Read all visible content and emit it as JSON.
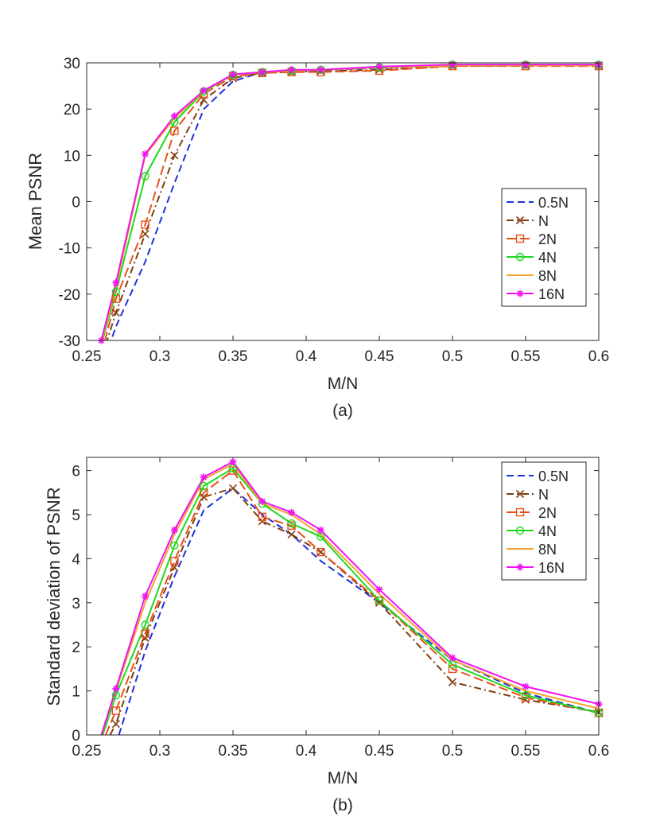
{
  "chart_data": [
    {
      "type": "line",
      "caption": "(a)",
      "xlabel": "M/N",
      "ylabel": "Mean PSNR",
      "xlim": [
        0.25,
        0.6
      ],
      "ylim": [
        -30,
        30
      ],
      "xticks": [
        "0.25",
        "0.3",
        "0.35",
        "0.4",
        "0.45",
        "0.5",
        "0.55",
        "0.6"
      ],
      "yticks": [
        "-30",
        "-20",
        "-10",
        "0",
        "10",
        "20",
        "30"
      ],
      "legend_position": "lower-right",
      "series": [
        {
          "name": "0.5N",
          "color": "#1f2fe0",
          "dash": "dashed",
          "marker": "none",
          "x": [
            0.26,
            0.27,
            0.29,
            0.31,
            0.33,
            0.35,
            0.37,
            0.39,
            0.41,
            0.45,
            0.5,
            0.55,
            0.6
          ],
          "y": [
            -36,
            -27,
            -13,
            4,
            20,
            26,
            28,
            28.2,
            28.4,
            28.9,
            29.4,
            29.5,
            29.5
          ]
        },
        {
          "name": "N",
          "color": "#7f3f10",
          "dash": "dashdot",
          "marker": "x",
          "x": [
            0.26,
            0.27,
            0.29,
            0.31,
            0.33,
            0.35,
            0.37,
            0.39,
            0.41,
            0.45,
            0.5,
            0.55,
            0.6
          ],
          "y": [
            -34,
            -24,
            -7,
            10,
            22,
            26.7,
            27.8,
            28,
            28.2,
            28.5,
            29.3,
            29.4,
            29.4
          ]
        },
        {
          "name": "2N",
          "color": "#e8501a",
          "dash": "longdash",
          "marker": "square",
          "x": [
            0.26,
            0.27,
            0.29,
            0.31,
            0.33,
            0.35,
            0.37,
            0.39,
            0.41,
            0.45,
            0.5,
            0.55,
            0.6
          ],
          "y": [
            -33,
            -21,
            -5,
            15.3,
            23.3,
            27.1,
            27.8,
            28,
            28,
            28.3,
            29.3,
            29.3,
            29.3
          ]
        },
        {
          "name": "4N",
          "color": "#1ed81e",
          "dash": "solid",
          "marker": "circle",
          "x": [
            0.26,
            0.27,
            0.29,
            0.31,
            0.33,
            0.35,
            0.37,
            0.39,
            0.41,
            0.45,
            0.5,
            0.55,
            0.6
          ],
          "y": [
            -31,
            -19.5,
            5.5,
            17.2,
            23.8,
            27.4,
            28,
            28.3,
            28.5,
            29,
            29.6,
            29.6,
            29.6
          ]
        },
        {
          "name": "8N",
          "color": "#f2a531",
          "dash": "solid",
          "marker": "none",
          "x": [
            0.26,
            0.27,
            0.29,
            0.31,
            0.33,
            0.35,
            0.37,
            0.39,
            0.41,
            0.45,
            0.5,
            0.55,
            0.6
          ],
          "y": [
            -30.5,
            -18.5,
            10,
            18,
            24,
            27.4,
            28,
            28.3,
            28.5,
            29,
            29.4,
            29.4,
            29.4
          ]
        },
        {
          "name": "16N",
          "color": "#f012f0",
          "dash": "solid",
          "marker": "star",
          "x": [
            0.26,
            0.27,
            0.29,
            0.31,
            0.33,
            0.35,
            0.37,
            0.39,
            0.41,
            0.45,
            0.5,
            0.55,
            0.6
          ],
          "y": [
            -30,
            -17.5,
            10.3,
            18.5,
            24,
            27.5,
            28,
            28.5,
            28.5,
            29.2,
            29.6,
            29.6,
            29.6
          ]
        }
      ]
    },
    {
      "type": "line",
      "caption": "(b)",
      "xlabel": "M/N",
      "ylabel": "Standard deviation of PSNR",
      "xlim": [
        0.25,
        0.6
      ],
      "ylim": [
        0,
        6.3
      ],
      "xticks": [
        "0.25",
        "0.3",
        "0.35",
        "0.4",
        "0.45",
        "0.5",
        "0.55",
        "0.6"
      ],
      "yticks": [
        "0",
        "1",
        "2",
        "3",
        "4",
        "5",
        "6"
      ],
      "legend_position": "top-right",
      "series": [
        {
          "name": "0.5N",
          "color": "#1f2fe0",
          "dash": "dashed",
          "marker": "none",
          "x": [
            0.272,
            0.29,
            0.31,
            0.33,
            0.35,
            0.37,
            0.39,
            0.41,
            0.45,
            0.5,
            0.55,
            0.6
          ],
          "y": [
            0,
            1.9,
            3.6,
            5.1,
            5.6,
            5.0,
            4.55,
            3.95,
            3.0,
            1.7,
            0.95,
            0.5
          ]
        },
        {
          "name": "N",
          "color": "#7f3f10",
          "dash": "dashdot",
          "marker": "x",
          "x": [
            0.266,
            0.27,
            0.29,
            0.31,
            0.33,
            0.35,
            0.37,
            0.39,
            0.41,
            0.45,
            0.5,
            0.55,
            0.6
          ],
          "y": [
            0,
            0.25,
            2.2,
            3.8,
            5.4,
            5.6,
            4.85,
            4.55,
            4.15,
            3.0,
            1.2,
            0.8,
            0.52
          ]
        },
        {
          "name": "2N",
          "color": "#e8501a",
          "dash": "longdash",
          "marker": "square",
          "x": [
            0.263,
            0.27,
            0.29,
            0.31,
            0.33,
            0.35,
            0.37,
            0.39,
            0.41,
            0.45,
            0.5,
            0.55,
            0.6
          ],
          "y": [
            0,
            0.55,
            2.3,
            3.95,
            5.5,
            6.0,
            4.95,
            4.75,
            4.15,
            3.05,
            1.5,
            0.85,
            0.5
          ]
        },
        {
          "name": "4N",
          "color": "#1ed81e",
          "dash": "solid",
          "marker": "circle",
          "x": [
            0.261,
            0.27,
            0.29,
            0.31,
            0.33,
            0.35,
            0.37,
            0.39,
            0.41,
            0.45,
            0.5,
            0.55,
            0.6
          ],
          "y": [
            0,
            0.9,
            2.5,
            4.3,
            5.65,
            6.05,
            5.25,
            4.8,
            4.5,
            3.05,
            1.6,
            0.9,
            0.5
          ]
        },
        {
          "name": "8N",
          "color": "#f2a531",
          "dash": "solid",
          "marker": "none",
          "x": [
            0.26,
            0.27,
            0.29,
            0.31,
            0.33,
            0.35,
            0.37,
            0.39,
            0.41,
            0.45,
            0.5,
            0.55,
            0.6
          ],
          "y": [
            0,
            1.0,
            3.0,
            4.55,
            5.8,
            6.15,
            5.25,
            5.0,
            4.55,
            3.2,
            1.7,
            1.0,
            0.6
          ]
        },
        {
          "name": "16N",
          "color": "#f012f0",
          "dash": "solid",
          "marker": "star",
          "x": [
            0.26,
            0.27,
            0.29,
            0.31,
            0.33,
            0.35,
            0.37,
            0.39,
            0.41,
            0.45,
            0.5,
            0.55,
            0.6
          ],
          "y": [
            0,
            1.05,
            3.15,
            4.65,
            5.85,
            6.2,
            5.3,
            5.05,
            4.65,
            3.3,
            1.75,
            1.1,
            0.7
          ]
        }
      ]
    }
  ]
}
